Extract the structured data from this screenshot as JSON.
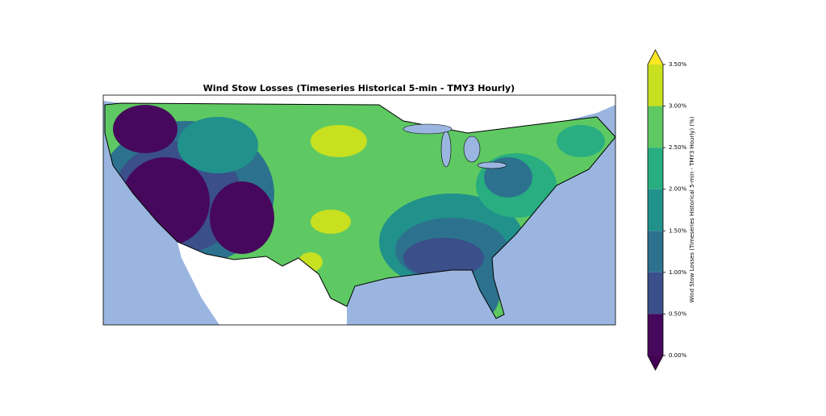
{
  "chart_data": {
    "type": "contour-map",
    "title": "Wind Stow Losses (Timeseries Historical 5-min - TMY3 Hourly)",
    "colorbar": {
      "label": "Wind Stow Losses (Timeseries Historical 5-min - TMY3 Hourly) (%)",
      "ticks": [
        {
          "value": 0,
          "label": "0.00%"
        },
        {
          "value": 0.5,
          "label": "0.50%"
        },
        {
          "value": 1,
          "label": "1.00%"
        },
        {
          "value": 1.5,
          "label": "1.50%"
        },
        {
          "value": 2,
          "label": "2.00%"
        },
        {
          "value": 2.5,
          "label": "2.50%"
        },
        {
          "value": 3,
          "label": "3.00%"
        },
        {
          "value": 3.5,
          "label": "3.50%"
        }
      ],
      "colors": [
        "#46085c",
        "#3b4f8a",
        "#2c728e",
        "#21918c",
        "#28ae80",
        "#5ec962",
        "#c8e020"
      ],
      "under_color": "#440154",
      "over_color": "#fde725"
    }
  }
}
